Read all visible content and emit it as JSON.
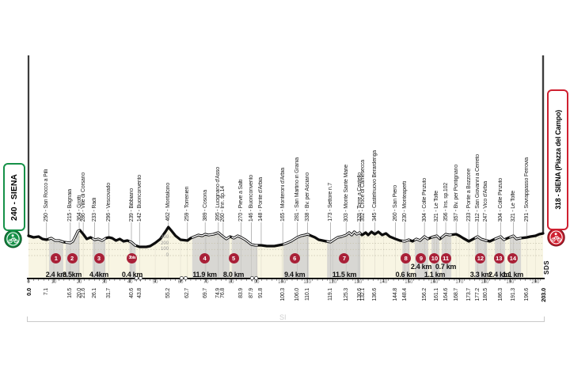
{
  "start": {
    "label": "240 - SIENA",
    "color": "#169148"
  },
  "finish": {
    "label": "318 - SIENA (Piazza del Campo)",
    "color": "#cf2030"
  },
  "watermarks": {
    "si": "SI",
    "sds": "SDS"
  },
  "palette": {
    "profile_line": "#0d0d0d",
    "under_curve_fill": "#f8f5e3",
    "sector_band": "#d8d7d3",
    "sector_circle": "#a92038",
    "start_green": "#169148",
    "finish_red": "#cf2030"
  },
  "chart_data": {
    "type": "line",
    "x_unit": "km",
    "x_range": [
      0,
      203
    ],
    "total_distance_label": "203.0",
    "start_km_label": "0.0",
    "x_major_ticks": [
      0,
      10,
      20,
      30,
      40,
      50,
      60,
      70,
      80,
      90,
      100,
      110,
      120,
      130,
      140,
      150,
      160,
      170,
      180,
      190,
      200
    ],
    "y_gridlines_m": [
      0,
      100,
      200,
      300
    ],
    "y_scale_labels": [
      "0",
      "100",
      "200",
      "300"
    ],
    "km_tick_labels": [
      "0.0",
      "7.1",
      "16.5",
      "20.0",
      "21.6",
      "26.1",
      "31.7",
      "40.6",
      "43.8",
      "55.2",
      "62.7",
      "69.7",
      "74.9",
      "76.8",
      "83.9",
      "87.9",
      "91.8",
      "100.3",
      "106.0",
      "110.1",
      "119.1",
      "125.3",
      "130.6",
      "132.1",
      "136.6",
      "144.8",
      "148.4",
      "156.2",
      "161.1",
      "164.6",
      "168.7",
      "173.7",
      "177.2",
      "180.5",
      "186.3",
      "191.3",
      "196.6",
      "203.0"
    ],
    "locations": [
      {
        "km": 7.1,
        "label": "250 - San Rocco a Pilli"
      },
      {
        "km": 16.5,
        "label": "215 - Bagnaia"
      },
      {
        "km": 20.0,
        "label": "364 - Grotti"
      },
      {
        "km": 21.6,
        "label": "286 - Ville di Corsano"
      },
      {
        "km": 26.1,
        "label": "233 - Radi"
      },
      {
        "km": 31.7,
        "label": "296 - Vescovado"
      },
      {
        "km": 40.6,
        "label": "239 - Bibbiano"
      },
      {
        "km": 43.8,
        "label": "142 - Buonconvento"
      },
      {
        "km": 55.2,
        "label": "462 - Montalcino"
      },
      {
        "km": 62.7,
        "label": "259 - Torrenieri"
      },
      {
        "km": 69.7,
        "label": "389 - Cosona"
      },
      {
        "km": 74.9,
        "label": "395 - Lucignano d'Asso"
      },
      {
        "km": 76.8,
        "label": "260 - Inn. sp.14"
      },
      {
        "km": 83.9,
        "label": "270 - Pieve a Salti"
      },
      {
        "km": 87.9,
        "label": "146 - Buonconvento"
      },
      {
        "km": 91.8,
        "label": "148 - Ponte d'Arbia"
      },
      {
        "km": 100.3,
        "label": "165 - Monteroni d'Arbia"
      },
      {
        "km": 106.0,
        "label": "281 - San Martino in Grania"
      },
      {
        "km": 110.1,
        "label": "338 - Bv. per Asciano"
      },
      {
        "km": 119.1,
        "label": "173 - Settore n.7"
      },
      {
        "km": 125.3,
        "label": "303 - Monte Sante Marie"
      },
      {
        "km": 130.6,
        "label": "328 - Torre a Castello"
      },
      {
        "km": 132.1,
        "label": "302 - Croce di Camesecca"
      },
      {
        "km": 136.6,
        "label": "345 - Castelnuovo Berardenga"
      },
      {
        "km": 144.8,
        "label": "260 - San Piero"
      },
      {
        "km": 148.4,
        "label": "230 - Monteaperti"
      },
      {
        "km": 156.2,
        "label": "304 - Colle Pinzuto"
      },
      {
        "km": 161.1,
        "label": "321 - Le Tolfe"
      },
      {
        "km": 164.6,
        "label": "356 - Ins. sp.102"
      },
      {
        "km": 168.7,
        "label": "357 - Bv. per Pontignano"
      },
      {
        "km": 173.7,
        "label": "233 - Ponte a Bozzone"
      },
      {
        "km": 177.2,
        "label": "312 - San Giovanni a Cerreto"
      },
      {
        "km": 180.5,
        "label": "247 - Vico d'Arbia"
      },
      {
        "km": 186.3,
        "label": "304 - Colle Pinzuto"
      },
      {
        "km": 191.3,
        "label": "321 - Le Tolfe"
      },
      {
        "km": 196.6,
        "label": "291 - Sovrappasso Ferrovia"
      }
    ],
    "sectors": [
      {
        "n": "1",
        "len": "2.4 km",
        "band": [
          8.1,
          13.7
        ],
        "at": 10.9,
        "row": "low"
      },
      {
        "n": "2",
        "len": "3.5km",
        "band": [
          14.7,
          20.0
        ],
        "at": 17.2,
        "row": "low"
      },
      {
        "n": "3",
        "len": "4.4km",
        "band": [
          25.3,
          30.3
        ],
        "at": 27.8,
        "row": "low"
      },
      {
        "n": "3bis",
        "len": "0.4 km",
        "band": [
          39.9,
          42.3
        ],
        "at": 40.9,
        "row": "low"
      },
      {
        "n": "4",
        "len": "11.9 km",
        "band": [
          64.6,
          79.3
        ],
        "at": 69.5,
        "row": "low"
      },
      {
        "n": "5",
        "len": "8.0 km",
        "band": [
          80.3,
          90.3
        ],
        "at": 80.9,
        "row": "low"
      },
      {
        "n": "6",
        "len": "9.4 km",
        "band": [
          100.6,
          110.6
        ],
        "at": 105.0,
        "row": "low"
      },
      {
        "n": "7",
        "len": "11.5 km",
        "band": [
          117.8,
          130.9
        ],
        "at": 124.6,
        "row": "low"
      },
      {
        "n": "8",
        "len": "0.6 km",
        "band": [
          147.5,
          150.3
        ],
        "at": 148.9,
        "row": "low"
      },
      {
        "n": "9",
        "len": "2.4 km",
        "band": [
          152.4,
          157.7
        ],
        "at": 154.9,
        "row": "high"
      },
      {
        "n": "10",
        "len": "1.1 km",
        "band": [
          159.0,
          162.1
        ],
        "at": 160.2,
        "row": "low"
      },
      {
        "n": "11",
        "len": "0.7 km",
        "band": [
          163.0,
          166.8
        ],
        "at": 164.6,
        "row": "high"
      },
      {
        "n": "12",
        "len": "3.3 km",
        "band": [
          176.2,
          180.9
        ],
        "at": 178.3,
        "row": "low"
      },
      {
        "n": "13",
        "len": "2.4 km",
        "band": [
          184.0,
          188.0
        ],
        "at": 185.6,
        "row": "low"
      },
      {
        "n": "14",
        "len": "1.1 km",
        "band": [
          189.9,
          194.3
        ],
        "at": 191.1,
        "row": "low"
      }
    ],
    "feed_zones_km": [
      43.4,
      61.2,
      89.0
    ],
    "profile": [
      [
        0,
        322
      ],
      [
        2,
        297
      ],
      [
        4,
        310
      ],
      [
        5.5,
        271
      ],
      [
        7.1,
        258
      ],
      [
        9,
        284
      ],
      [
        10.5,
        245
      ],
      [
        12,
        245
      ],
      [
        14,
        219
      ],
      [
        16.5,
        206
      ],
      [
        17.5,
        232
      ],
      [
        18.5,
        310
      ],
      [
        19.5,
        400
      ],
      [
        20.3,
        413
      ],
      [
        21.6,
        348
      ],
      [
        23,
        271
      ],
      [
        24.5,
        297
      ],
      [
        26.1,
        258
      ],
      [
        27.5,
        271
      ],
      [
        29,
        245
      ],
      [
        30.5,
        284
      ],
      [
        31.7,
        297
      ],
      [
        33,
        284
      ],
      [
        34.5,
        245
      ],
      [
        36,
        271
      ],
      [
        37.5,
        232
      ],
      [
        39,
        245
      ],
      [
        40.6,
        219
      ],
      [
        42,
        168
      ],
      [
        43.8,
        142
      ],
      [
        46.5,
        142
      ],
      [
        48,
        155
      ],
      [
        50,
        206
      ],
      [
        52,
        271
      ],
      [
        54,
        387
      ],
      [
        55.2,
        464
      ],
      [
        56.5,
        400
      ],
      [
        58,
        322
      ],
      [
        60,
        258
      ],
      [
        62.7,
        245
      ],
      [
        64,
        284
      ],
      [
        65.5,
        310
      ],
      [
        67,
        335
      ],
      [
        68.5,
        322
      ],
      [
        69.7,
        348
      ],
      [
        71,
        335
      ],
      [
        73,
        348
      ],
      [
        74.9,
        374
      ],
      [
        76,
        335
      ],
      [
        76.8,
        310
      ],
      [
        78,
        271
      ],
      [
        79.5,
        310
      ],
      [
        81,
        284
      ],
      [
        82.5,
        322
      ],
      [
        83.9,
        297
      ],
      [
        85.5,
        258
      ],
      [
        87.9,
        181
      ],
      [
        89.5,
        168
      ],
      [
        91.8,
        168
      ],
      [
        94,
        155
      ],
      [
        97,
        155
      ],
      [
        100.3,
        181
      ],
      [
        102,
        206
      ],
      [
        103.5,
        232
      ],
      [
        104.5,
        258
      ],
      [
        106,
        297
      ],
      [
        107.5,
        322
      ],
      [
        109,
        335
      ],
      [
        110.1,
        348
      ],
      [
        111.5,
        322
      ],
      [
        113,
        297
      ],
      [
        114.5,
        258
      ],
      [
        116,
        245
      ],
      [
        117.5,
        232
      ],
      [
        119.1,
        219
      ],
      [
        120.5,
        258
      ],
      [
        122,
        297
      ],
      [
        123.5,
        310
      ],
      [
        125.3,
        335
      ],
      [
        126.5,
        374
      ],
      [
        127.5,
        335
      ],
      [
        128.5,
        387
      ],
      [
        129.5,
        348
      ],
      [
        130.6,
        374
      ],
      [
        131.5,
        335
      ],
      [
        132.1,
        348
      ],
      [
        133,
        374
      ],
      [
        134,
        335
      ],
      [
        135.3,
        387
      ],
      [
        136.6,
        348
      ],
      [
        138,
        387
      ],
      [
        139.5,
        335
      ],
      [
        141,
        361
      ],
      [
        142.5,
        310
      ],
      [
        144.8,
        271
      ],
      [
        146.5,
        245
      ],
      [
        148.4,
        232
      ],
      [
        150,
        258
      ],
      [
        151.5,
        232
      ],
      [
        153,
        271
      ],
      [
        154.5,
        245
      ],
      [
        156.2,
        310
      ],
      [
        157.5,
        271
      ],
      [
        159,
        297
      ],
      [
        161.1,
        322
      ],
      [
        162.3,
        271
      ],
      [
        164.6,
        348
      ],
      [
        166,
        335
      ],
      [
        168.7,
        348
      ],
      [
        170,
        322
      ],
      [
        171.5,
        284
      ],
      [
        173.7,
        232
      ],
      [
        175.5,
        271
      ],
      [
        177.2,
        310
      ],
      [
        178.5,
        271
      ],
      [
        180.5,
        245
      ],
      [
        182,
        232
      ],
      [
        184,
        271
      ],
      [
        186.3,
        310
      ],
      [
        187.5,
        258
      ],
      [
        189,
        284
      ],
      [
        191.3,
        322
      ],
      [
        192.5,
        271
      ],
      [
        194,
        284
      ],
      [
        196.6,
        297
      ],
      [
        198,
        310
      ],
      [
        200,
        322
      ],
      [
        201.5,
        348
      ],
      [
        203,
        361
      ]
    ]
  }
}
